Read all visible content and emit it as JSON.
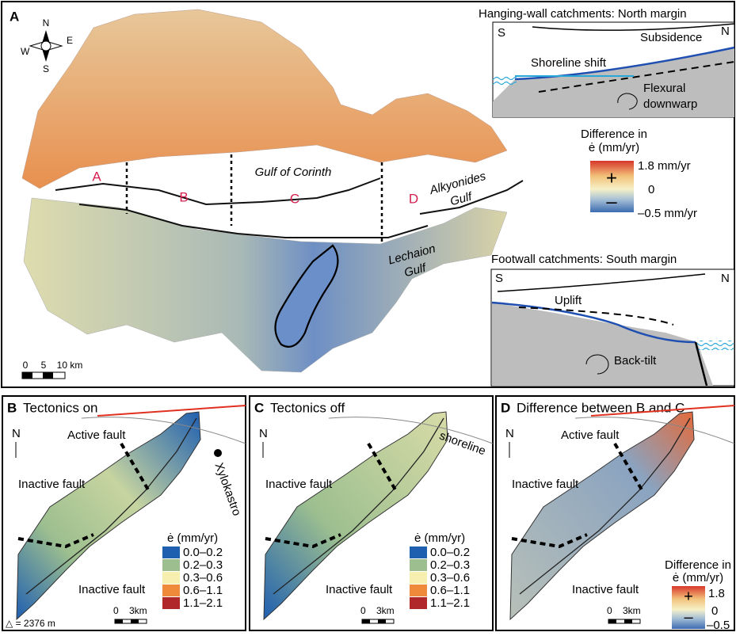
{
  "panel_a": {
    "label": "A",
    "compass": {
      "n": "N",
      "e": "E",
      "s": "S",
      "w": "W"
    },
    "regions": [
      "A",
      "B",
      "C",
      "D"
    ],
    "gulf_of_corinth": "Gulf of Corinth",
    "alkyonides": [
      "Alkyonides",
      "Gulf"
    ],
    "lechaion": [
      "Lechaion",
      "Gulf"
    ],
    "scale": [
      "0",
      "5",
      "10 km"
    ],
    "north_inset": {
      "title": "Hanging-wall catchments: North margin",
      "left": "S",
      "right": "N",
      "subsidence": "Subsidence",
      "shoreline_shift": "Shoreline shift",
      "flexural": [
        "Flexural",
        "downwarp"
      ]
    },
    "legend": {
      "title": [
        "Difference in",
        "ė (mm/yr)"
      ],
      "max": "1.8 mm/yr",
      "mid": "0",
      "min": "–0.5 mm/yr",
      "plus": "+",
      "minus": "–"
    },
    "south_inset": {
      "title": "Footwall catchments: South margin",
      "left": "S",
      "right": "N",
      "uplift": "Uplift",
      "back_tilt": "Back-tilt"
    }
  },
  "panel_b": {
    "label": "B",
    "title": "Tectonics on",
    "north": "N",
    "active_fault": "Active fault",
    "inactive_fault_top": "Inactive fault",
    "inactive_fault_bottom": "Inactive fault",
    "town": "Xylokastro",
    "legend_title": "ė (mm/yr)",
    "legend": [
      {
        "label": "0.0–0.2",
        "color": "#1f5fb0"
      },
      {
        "label": "0.2–0.3",
        "color": "#9dbf8f"
      },
      {
        "label": "0.3–0.6",
        "color": "#f6efb0"
      },
      {
        "label": "0.6–1.1",
        "color": "#ee8a3a"
      },
      {
        "label": "1.1–2.1",
        "color": "#b0282a"
      }
    ],
    "scale": [
      "0",
      "3km"
    ],
    "summit": "△ = 2376 m"
  },
  "panel_c": {
    "label": "C",
    "title": "Tectonics off",
    "north": "N",
    "shoreline": "shoreline",
    "inactive_fault_top": "Inactive fault",
    "inactive_fault_bottom": "Inactive fault",
    "legend_title": "ė (mm/yr)",
    "legend": [
      {
        "label": "0.0–0.2",
        "color": "#1f5fb0"
      },
      {
        "label": "0.2–0.3",
        "color": "#9dbf8f"
      },
      {
        "label": "0.3–0.6",
        "color": "#f6efb0"
      },
      {
        "label": "0.6–1.1",
        "color": "#ee8a3a"
      },
      {
        "label": "1.1–2.1",
        "color": "#b0282a"
      }
    ],
    "scale": [
      "0",
      "3km"
    ]
  },
  "panel_d": {
    "label": "D",
    "title": "Difference between B and C",
    "north": "N",
    "active_fault": "Active fault",
    "inactive_fault_top": "Inactive fault",
    "inactive_fault_bottom": "Inactive fault",
    "legend": {
      "title": [
        "Difference in",
        "ė (mm/yr)"
      ],
      "max": "1.8",
      "mid": "0",
      "min": "–0.5",
      "plus": "+",
      "minus": "–"
    },
    "scale": [
      "0",
      "3km"
    ]
  }
}
